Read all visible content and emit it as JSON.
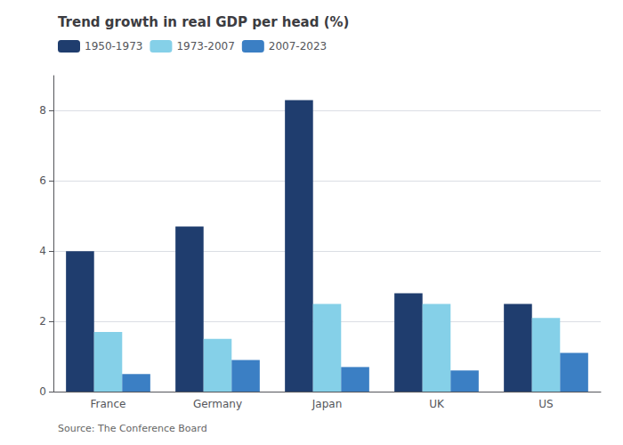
{
  "chart_data": {
    "type": "bar",
    "title": "Trend growth in real GDP per head (%)",
    "annotations": [
      "Source: The Conference Board"
    ],
    "categories": [
      "France",
      "Germany",
      "Japan",
      "UK",
      "US"
    ],
    "series": [
      {
        "name": "1950-1973",
        "color": "#1f3d6e",
        "values": [
          4.0,
          4.7,
          8.3,
          2.8,
          2.5
        ]
      },
      {
        "name": "1973-2007",
        "color": "#85d0e8",
        "values": [
          1.7,
          1.5,
          2.5,
          2.5,
          2.1
        ]
      },
      {
        "name": "2007-2023",
        "color": "#3b7fc4",
        "values": [
          0.5,
          0.9,
          0.7,
          0.6,
          1.1
        ]
      }
    ],
    "ylim": [
      0,
      9
    ],
    "yticks": [
      0,
      2,
      4,
      6,
      8
    ],
    "grid": true,
    "legend": "upper left"
  }
}
